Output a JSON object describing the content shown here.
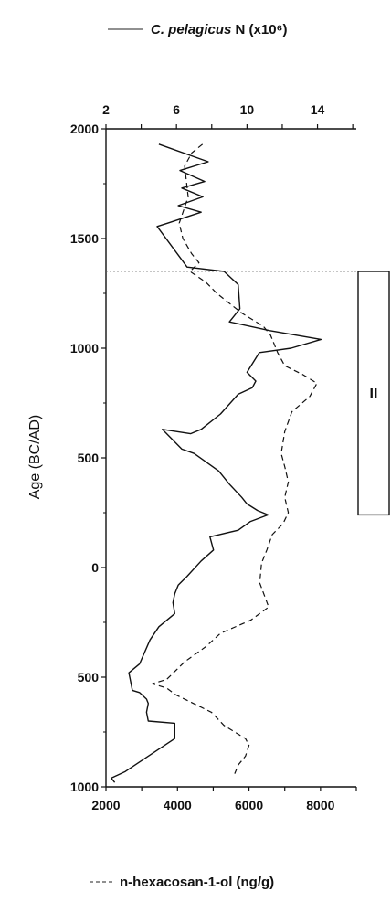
{
  "chart_data": {
    "type": "line",
    "ylabel": "Age (BC/AD)",
    "y_tick_labels": [
      "2000",
      "1500",
      "1000",
      "500",
      "0",
      "500",
      "1000"
    ],
    "y_tick_values": [
      2000,
      1500,
      1000,
      500,
      0,
      -500,
      -1000
    ],
    "ylim": [
      -1000,
      2000
    ],
    "top_axis": {
      "ticks": [
        2,
        6,
        10,
        14
      ],
      "xlim": [
        2,
        16.2
      ]
    },
    "bottom_axis": {
      "ticks": [
        2000,
        4000,
        6000,
        8000
      ],
      "xlim": [
        2000,
        9000
      ]
    },
    "legend_top": {
      "italic": "C. pelagicus",
      "rest": " N (x10⁶)"
    },
    "legend_bottom": "n-hexacosan-1-ol (ng/g)",
    "zone": {
      "label": "II",
      "age_top": 1350,
      "age_bottom": 240
    },
    "series": [
      {
        "name": "C. pelagicus N (x10⁶)",
        "axis": "top",
        "style": "solid",
        "points": [
          [
            5,
            1930
          ],
          [
            7.8,
            1850
          ],
          [
            6.2,
            1810
          ],
          [
            7.6,
            1760
          ],
          [
            6.3,
            1730
          ],
          [
            7.5,
            1690
          ],
          [
            6.1,
            1650
          ],
          [
            7.4,
            1620
          ],
          [
            5.5,
            1570
          ],
          [
            4.9,
            1555
          ],
          [
            6.6,
            1370
          ],
          [
            8.7,
            1350
          ],
          [
            9.5,
            1290
          ],
          [
            9.6,
            1180
          ],
          [
            9,
            1120
          ],
          [
            11.3,
            1080
          ],
          [
            14.2,
            1040
          ],
          [
            12.5,
            1000
          ],
          [
            10.7,
            980
          ],
          [
            10,
            890
          ],
          [
            10.5,
            850
          ],
          [
            10.3,
            820
          ],
          [
            9.5,
            790
          ],
          [
            8.5,
            700
          ],
          [
            7.4,
            630
          ],
          [
            6.8,
            610
          ],
          [
            5.2,
            630
          ],
          [
            6.3,
            540
          ],
          [
            7,
            520
          ],
          [
            7.7,
            480
          ],
          [
            8.4,
            440
          ],
          [
            9,
            380
          ],
          [
            9.7,
            320
          ],
          [
            10,
            290
          ],
          [
            10.6,
            260
          ],
          [
            11.2,
            240
          ],
          [
            10.2,
            210
          ],
          [
            9.5,
            170
          ],
          [
            7.9,
            140
          ],
          [
            8.1,
            80
          ],
          [
            7.4,
            30
          ],
          [
            6.6,
            -40
          ],
          [
            6.1,
            -80
          ],
          [
            5.9,
            -120
          ],
          [
            5.8,
            -160
          ],
          [
            5.9,
            -210
          ],
          [
            5,
            -270
          ],
          [
            4.5,
            -330
          ],
          [
            3.9,
            -440
          ],
          [
            3.3,
            -480
          ],
          [
            3.4,
            -520
          ],
          [
            3.5,
            -560
          ],
          [
            3.9,
            -570
          ],
          [
            4.3,
            -600
          ],
          [
            4.4,
            -620
          ],
          [
            4.3,
            -660
          ],
          [
            4.4,
            -700
          ],
          [
            5.9,
            -710
          ],
          [
            5.9,
            -780
          ],
          [
            4.4,
            -860
          ],
          [
            3.1,
            -930
          ],
          [
            2.3,
            -960
          ],
          [
            2.5,
            -980
          ]
        ]
      },
      {
        "name": "n-hexacosan-1-ol (ng/g)",
        "axis": "bottom",
        "style": "dashed",
        "points": [
          [
            4700,
            1930
          ],
          [
            4400,
            1890
          ],
          [
            4200,
            1830
          ],
          [
            4250,
            1760
          ],
          [
            4300,
            1690
          ],
          [
            4050,
            1570
          ],
          [
            4150,
            1500
          ],
          [
            4400,
            1430
          ],
          [
            4600,
            1390
          ],
          [
            4350,
            1350
          ],
          [
            4800,
            1300
          ],
          [
            5100,
            1250
          ],
          [
            5800,
            1160
          ],
          [
            6400,
            1100
          ],
          [
            6600,
            1060
          ],
          [
            6700,
            1020
          ],
          [
            6800,
            980
          ],
          [
            7000,
            920
          ],
          [
            7500,
            880
          ],
          [
            7900,
            840
          ],
          [
            7700,
            780
          ],
          [
            7200,
            710
          ],
          [
            7000,
            620
          ],
          [
            6900,
            520
          ],
          [
            7000,
            460
          ],
          [
            7100,
            390
          ],
          [
            7000,
            320
          ],
          [
            7100,
            250
          ],
          [
            6950,
            200
          ],
          [
            6650,
            150
          ],
          [
            6500,
            80
          ],
          [
            6350,
            20
          ],
          [
            6300,
            -70
          ],
          [
            6550,
            -180
          ],
          [
            6050,
            -240
          ],
          [
            5200,
            -300
          ],
          [
            4800,
            -360
          ],
          [
            4200,
            -430
          ],
          [
            3700,
            -510
          ],
          [
            3300,
            -530
          ],
          [
            3700,
            -550
          ],
          [
            3950,
            -580
          ],
          [
            4450,
            -620
          ],
          [
            4950,
            -660
          ],
          [
            5300,
            -720
          ],
          [
            5900,
            -780
          ],
          [
            6000,
            -810
          ],
          [
            5900,
            -860
          ],
          [
            5700,
            -900
          ],
          [
            5600,
            -940
          ]
        ]
      }
    ]
  }
}
